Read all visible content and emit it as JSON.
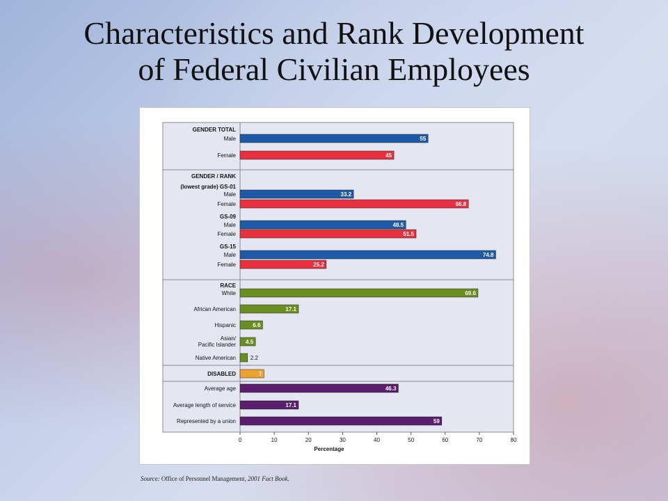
{
  "slide": {
    "title_line1": "Characteristics and Rank Development",
    "title_line2": "of Federal Civilian Employees"
  },
  "colors": {
    "gender_male": "#1f5aa6",
    "gender_female": "#e8303f",
    "race": "#6b8e23",
    "disabled": "#f0a22e",
    "other": "#5a1e6e",
    "plot_background": "#e4e7f2"
  },
  "chart_data": {
    "type": "bar",
    "orientation": "horizontal",
    "xlabel": "Percentage",
    "xlim": [
      0,
      80
    ],
    "xticks": [
      0,
      10,
      20,
      30,
      40,
      50,
      60,
      70,
      80
    ],
    "grid": false,
    "sections": [
      {
        "header": "GENDER TOTAL",
        "rows": [
          {
            "label": "Male",
            "value": 55,
            "value_label": "55",
            "color_key": "gender_male"
          },
          {
            "label": "Female",
            "value": 45,
            "value_label": "45",
            "color_key": "gender_female"
          }
        ]
      },
      {
        "header": "GENDER / RANK",
        "subgroups": [
          {
            "name": "(lowest grade) GS-01",
            "rows": [
              {
                "label": "Male",
                "value": 33.2,
                "value_label": "33.2",
                "color_key": "gender_male"
              },
              {
                "label": "Female",
                "value": 66.8,
                "value_label": "66.8",
                "color_key": "gender_female"
              }
            ]
          },
          {
            "name": "GS-09",
            "rows": [
              {
                "label": "Male",
                "value": 48.5,
                "value_label": "48.5",
                "color_key": "gender_male"
              },
              {
                "label": "Female",
                "value": 51.5,
                "value_label": "51.5",
                "color_key": "gender_female"
              }
            ]
          },
          {
            "name": "GS-15",
            "rows": [
              {
                "label": "Male",
                "value": 74.8,
                "value_label": "74.8",
                "color_key": "gender_male"
              },
              {
                "label": "Female",
                "value": 25.2,
                "value_label": "25.2",
                "color_key": "gender_female"
              }
            ]
          }
        ]
      },
      {
        "header": "RACE",
        "rows": [
          {
            "label": "White",
            "value": 69.6,
            "value_label": "69.6",
            "color_key": "race"
          },
          {
            "label": "African American",
            "value": 17.1,
            "value_label": "17.1",
            "color_key": "race"
          },
          {
            "label": "Hispanic",
            "value": 6.6,
            "value_label": "6.6",
            "color_key": "race"
          },
          {
            "label": "Asian/ Pacific Islander",
            "value": 4.5,
            "value_label": "4.5",
            "color_key": "race"
          },
          {
            "label": "Native American",
            "value": 2.2,
            "value_label": "2.2",
            "color_key": "race"
          }
        ]
      },
      {
        "header": "DISABLED",
        "rows": [
          {
            "label": "",
            "value": 7,
            "value_label": "7",
            "color_key": "disabled"
          }
        ]
      },
      {
        "header": "",
        "rows": [
          {
            "label": "Average age",
            "value": 46.3,
            "value_label": "46.3",
            "color_key": "other"
          },
          {
            "label": "Average length of service",
            "value": 17.1,
            "value_label": "17.1",
            "color_key": "other"
          },
          {
            "label": "Represented by a union",
            "value": 59,
            "value_label": "59",
            "color_key": "other"
          }
        ]
      }
    ]
  },
  "source": {
    "prefix": "Source:",
    "text": "Office of Personnel Management,",
    "book": "2001 Fact Book."
  }
}
